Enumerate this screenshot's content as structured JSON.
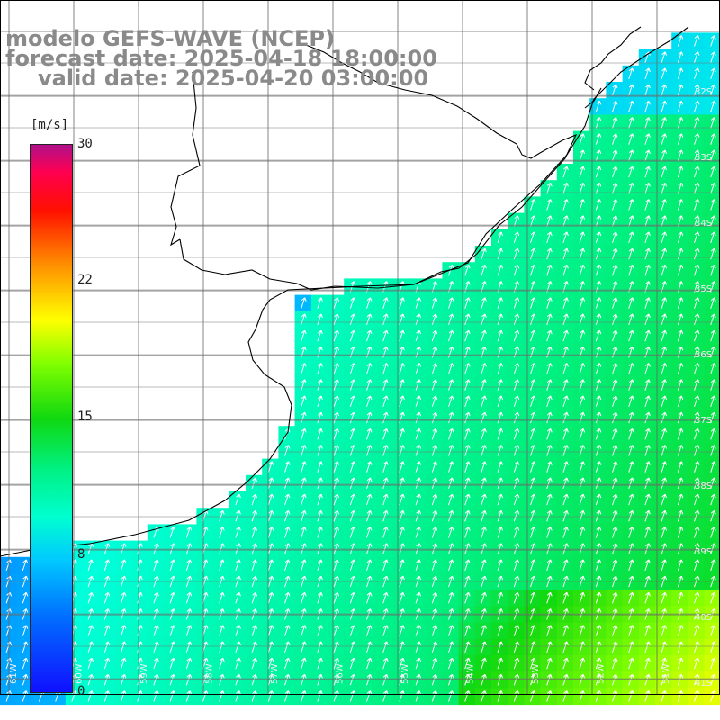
{
  "title": {
    "line1": "modelo GEFS-WAVE (NCEP)",
    "line2": "forecast date: 2025-04-18 18:00:00",
    "line3": "valid date: 2025-04-20 03:00:00"
  },
  "colorbar": {
    "unit": "[m/s]",
    "ticks": [
      "30",
      "22",
      "15",
      "8",
      "0"
    ]
  },
  "latitude_labels": [
    "32S",
    "33S",
    "34S",
    "35S",
    "36S",
    "37S",
    "38S",
    "39S",
    "40S",
    "41S"
  ],
  "longitude_labels": [
    "61W",
    "60W",
    "59W",
    "58W",
    "57W",
    "56W",
    "55W",
    "54W",
    "53W",
    "52W",
    "51W"
  ],
  "colors": {
    "land": "#ffffff",
    "grid": "#666666",
    "coast": "#000000",
    "title": "#8a8a8a",
    "arrows": "#ffffff"
  },
  "vector_field": "wind arrows pointing north-northeast"
}
